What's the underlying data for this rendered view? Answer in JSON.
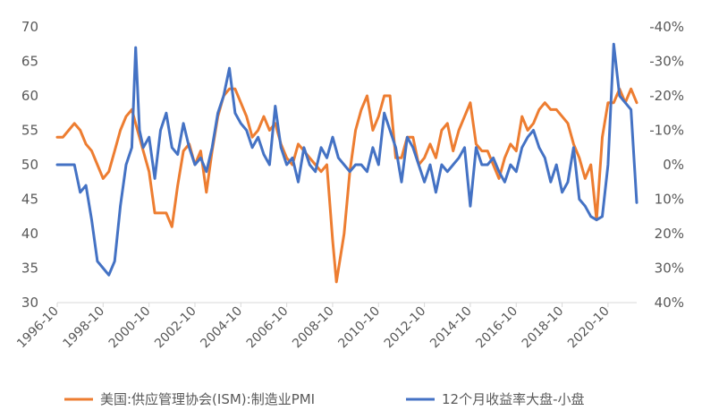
{
  "chart_data": {
    "type": "line",
    "y_left": {
      "min": 30,
      "max": 70,
      "step": 5,
      "tick_labels": [
        "30",
        "35",
        "40",
        "45",
        "50",
        "55",
        "60",
        "65",
        "70"
      ]
    },
    "y_right": {
      "min": -40,
      "max": 40,
      "inverted": true,
      "tick_labels": [
        "-40%",
        "-30%",
        "-20%",
        "-10%",
        "0%",
        "10%",
        "20%",
        "30%",
        "40%"
      ]
    },
    "x": {
      "start": "1996-10",
      "end": "2022-01",
      "tick_labels": [
        "1996-10",
        "1998-10",
        "2000-10",
        "2002-10",
        "2004-10",
        "2006-10",
        "2008-10",
        "2010-10",
        "2012-10",
        "2014-10",
        "2016-10",
        "2018-10",
        "2020-10"
      ]
    },
    "series": [
      {
        "name": "美国:供应管理协会(ISM):制造业PMI",
        "axis": "left",
        "color": "#ED7D31",
        "points": [
          [
            "1996-10",
            54
          ],
          [
            "1997-01",
            54
          ],
          [
            "1997-04",
            55
          ],
          [
            "1997-07",
            56
          ],
          [
            "1997-10",
            55
          ],
          [
            "1998-01",
            53
          ],
          [
            "1998-04",
            52
          ],
          [
            "1998-07",
            50
          ],
          [
            "1998-10",
            48
          ],
          [
            "1999-01",
            49
          ],
          [
            "1999-04",
            52
          ],
          [
            "1999-07",
            55
          ],
          [
            "1999-10",
            57
          ],
          [
            "2000-01",
            58
          ],
          [
            "2000-04",
            55
          ],
          [
            "2000-07",
            52
          ],
          [
            "2000-10",
            49
          ],
          [
            "2001-01",
            43
          ],
          [
            "2001-04",
            43
          ],
          [
            "2001-07",
            43
          ],
          [
            "2001-10",
            41
          ],
          [
            "2002-01",
            47
          ],
          [
            "2002-04",
            52
          ],
          [
            "2002-07",
            53
          ],
          [
            "2002-10",
            50
          ],
          [
            "2003-01",
            52
          ],
          [
            "2003-04",
            46
          ],
          [
            "2003-07",
            52
          ],
          [
            "2003-10",
            57
          ],
          [
            "2004-01",
            60
          ],
          [
            "2004-04",
            61
          ],
          [
            "2004-07",
            61
          ],
          [
            "2004-10",
            59
          ],
          [
            "2005-01",
            57
          ],
          [
            "2005-04",
            54
          ],
          [
            "2005-07",
            55
          ],
          [
            "2005-10",
            57
          ],
          [
            "2006-01",
            55
          ],
          [
            "2006-04",
            56
          ],
          [
            "2006-07",
            53
          ],
          [
            "2006-10",
            51
          ],
          [
            "2007-01",
            50
          ],
          [
            "2007-04",
            53
          ],
          [
            "2007-07",
            52
          ],
          [
            "2007-10",
            51
          ],
          [
            "2008-01",
            50
          ],
          [
            "2008-04",
            49
          ],
          [
            "2008-07",
            50
          ],
          [
            "2008-10",
            39
          ],
          [
            "2008-12",
            33
          ],
          [
            "2009-04",
            40
          ],
          [
            "2009-07",
            49
          ],
          [
            "2009-10",
            55
          ],
          [
            "2010-01",
            58
          ],
          [
            "2010-04",
            60
          ],
          [
            "2010-07",
            55
          ],
          [
            "2010-10",
            57
          ],
          [
            "2011-01",
            60
          ],
          [
            "2011-04",
            60
          ],
          [
            "2011-07",
            51
          ],
          [
            "2011-10",
            51
          ],
          [
            "2012-01",
            54
          ],
          [
            "2012-04",
            54
          ],
          [
            "2012-07",
            50
          ],
          [
            "2012-10",
            51
          ],
          [
            "2013-01",
            53
          ],
          [
            "2013-04",
            51
          ],
          [
            "2013-07",
            55
          ],
          [
            "2013-10",
            56
          ],
          [
            "2014-01",
            52
          ],
          [
            "2014-04",
            55
          ],
          [
            "2014-07",
            57
          ],
          [
            "2014-10",
            59
          ],
          [
            "2015-01",
            53
          ],
          [
            "2015-04",
            52
          ],
          [
            "2015-07",
            52
          ],
          [
            "2015-10",
            50
          ],
          [
            "2016-01",
            48
          ],
          [
            "2016-04",
            51
          ],
          [
            "2016-07",
            53
          ],
          [
            "2016-10",
            52
          ],
          [
            "2017-01",
            57
          ],
          [
            "2017-04",
            55
          ],
          [
            "2017-07",
            56
          ],
          [
            "2017-10",
            58
          ],
          [
            "2018-01",
            59
          ],
          [
            "2018-04",
            58
          ],
          [
            "2018-07",
            58
          ],
          [
            "2018-10",
            57
          ],
          [
            "2019-01",
            56
          ],
          [
            "2019-04",
            53
          ],
          [
            "2019-07",
            51
          ],
          [
            "2019-10",
            48
          ],
          [
            "2020-01",
            50
          ],
          [
            "2020-04",
            42
          ],
          [
            "2020-07",
            54
          ],
          [
            "2020-10",
            59
          ],
          [
            "2021-01",
            59
          ],
          [
            "2021-04",
            61
          ],
          [
            "2021-07",
            59
          ],
          [
            "2021-10",
            61
          ],
          [
            "2022-01",
            59
          ]
        ]
      },
      {
        "name": "12个月收益率大盘-小盘",
        "axis": "right",
        "color": "#4472C4",
        "points": [
          [
            "1996-10",
            0
          ],
          [
            "1997-01",
            0
          ],
          [
            "1997-04",
            0
          ],
          [
            "1997-07",
            0
          ],
          [
            "1997-10",
            8
          ],
          [
            "1998-01",
            6
          ],
          [
            "1998-04",
            16
          ],
          [
            "1998-07",
            28
          ],
          [
            "1998-10",
            30
          ],
          [
            "1999-01",
            32
          ],
          [
            "1999-04",
            28
          ],
          [
            "1999-07",
            12
          ],
          [
            "1999-10",
            0
          ],
          [
            "2000-01",
            -5
          ],
          [
            "2000-03",
            -34
          ],
          [
            "2000-05",
            -10
          ],
          [
            "2000-07",
            -5
          ],
          [
            "2000-10",
            -8
          ],
          [
            "2001-01",
            4
          ],
          [
            "2001-04",
            -10
          ],
          [
            "2001-07",
            -15
          ],
          [
            "2001-10",
            -5
          ],
          [
            "2002-01",
            -3
          ],
          [
            "2002-04",
            -12
          ],
          [
            "2002-07",
            -5
          ],
          [
            "2002-10",
            0
          ],
          [
            "2003-01",
            -2
          ],
          [
            "2003-04",
            2
          ],
          [
            "2003-07",
            -5
          ],
          [
            "2003-10",
            -15
          ],
          [
            "2004-01",
            -20
          ],
          [
            "2004-04",
            -28
          ],
          [
            "2004-07",
            -15
          ],
          [
            "2004-10",
            -12
          ],
          [
            "2005-01",
            -10
          ],
          [
            "2005-04",
            -5
          ],
          [
            "2005-07",
            -8
          ],
          [
            "2005-10",
            -3
          ],
          [
            "2006-01",
            0
          ],
          [
            "2006-04",
            -17
          ],
          [
            "2006-07",
            -5
          ],
          [
            "2006-10",
            0
          ],
          [
            "2007-01",
            -2
          ],
          [
            "2007-04",
            5
          ],
          [
            "2007-07",
            -5
          ],
          [
            "2007-10",
            0
          ],
          [
            "2008-01",
            2
          ],
          [
            "2008-04",
            -5
          ],
          [
            "2008-07",
            -2
          ],
          [
            "2008-10",
            -8
          ],
          [
            "2009-01",
            -2
          ],
          [
            "2009-04",
            0
          ],
          [
            "2009-07",
            2
          ],
          [
            "2009-10",
            0
          ],
          [
            "2010-01",
            0
          ],
          [
            "2010-04",
            2
          ],
          [
            "2010-07",
            -5
          ],
          [
            "2010-10",
            0
          ],
          [
            "2011-01",
            -15
          ],
          [
            "2011-04",
            -10
          ],
          [
            "2011-07",
            -5
          ],
          [
            "2011-10",
            5
          ],
          [
            "2012-01",
            -8
          ],
          [
            "2012-04",
            -5
          ],
          [
            "2012-07",
            0
          ],
          [
            "2012-10",
            5
          ],
          [
            "2013-01",
            0
          ],
          [
            "2013-04",
            8
          ],
          [
            "2013-07",
            0
          ],
          [
            "2013-10",
            2
          ],
          [
            "2014-01",
            0
          ],
          [
            "2014-04",
            -2
          ],
          [
            "2014-07",
            -5
          ],
          [
            "2014-10",
            12
          ],
          [
            "2015-01",
            -5
          ],
          [
            "2015-04",
            0
          ],
          [
            "2015-07",
            0
          ],
          [
            "2015-10",
            -2
          ],
          [
            "2016-01",
            2
          ],
          [
            "2016-04",
            5
          ],
          [
            "2016-07",
            0
          ],
          [
            "2016-10",
            2
          ],
          [
            "2017-01",
            -5
          ],
          [
            "2017-04",
            -8
          ],
          [
            "2017-07",
            -10
          ],
          [
            "2017-10",
            -5
          ],
          [
            "2018-01",
            -2
          ],
          [
            "2018-04",
            5
          ],
          [
            "2018-07",
            0
          ],
          [
            "2018-10",
            8
          ],
          [
            "2019-01",
            5
          ],
          [
            "2019-04",
            -5
          ],
          [
            "2019-07",
            10
          ],
          [
            "2019-10",
            12
          ],
          [
            "2020-01",
            15
          ],
          [
            "2020-04",
            16
          ],
          [
            "2020-07",
            15
          ],
          [
            "2020-10",
            0
          ],
          [
            "2021-01",
            -35
          ],
          [
            "2021-04",
            -20
          ],
          [
            "2021-07",
            -18
          ],
          [
            "2021-10",
            -16
          ],
          [
            "2022-01",
            11
          ]
        ]
      }
    ],
    "grid": {
      "horizontal": false,
      "vertical": false
    },
    "legend": {
      "position": "bottom",
      "entries": [
        "美国:供应管理协会(ISM):制造业PMI",
        "12个月收益率大盘-小盘"
      ]
    }
  }
}
